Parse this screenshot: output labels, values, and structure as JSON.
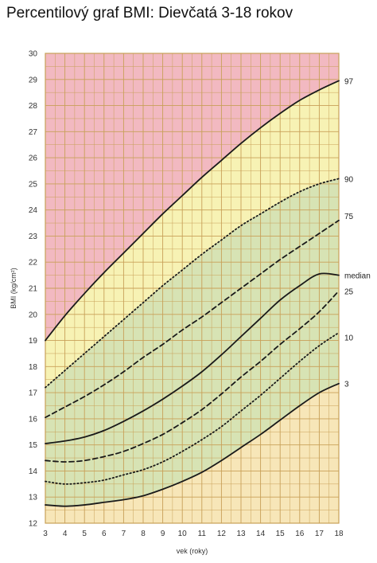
{
  "title": "Percentilový graf BMI: Dievčatá 3-18 rokov",
  "chart_data": {
    "type": "line",
    "title": "Percentilový graf BMI: Dievčatá 3-18 rokov",
    "xlabel": "vek (roky)",
    "ylabel": "BMI (kg/cm²)",
    "xlim": [
      3,
      18
    ],
    "ylim": [
      12,
      30
    ],
    "x_ticks": [
      3,
      4,
      5,
      6,
      7,
      8,
      9,
      10,
      11,
      12,
      13,
      14,
      15,
      16,
      17,
      18
    ],
    "y_ticks": [
      12,
      13,
      14,
      15,
      16,
      17,
      18,
      19,
      20,
      21,
      22,
      23,
      24,
      25,
      26,
      27,
      28,
      29,
      30
    ],
    "grid": true,
    "x": [
      3,
      4,
      5,
      6,
      7,
      8,
      9,
      10,
      11,
      12,
      13,
      14,
      15,
      16,
      17,
      18
    ],
    "series": [
      {
        "name": "3",
        "style": "solid",
        "values": [
          12.7,
          12.65,
          12.7,
          12.8,
          12.9,
          13.05,
          13.3,
          13.6,
          13.95,
          14.4,
          14.9,
          15.4,
          15.95,
          16.5,
          17.0,
          17.35
        ]
      },
      {
        "name": "10",
        "style": "dotted",
        "values": [
          13.6,
          13.5,
          13.55,
          13.65,
          13.85,
          14.05,
          14.35,
          14.75,
          15.2,
          15.7,
          16.3,
          16.9,
          17.55,
          18.2,
          18.8,
          19.3
        ]
      },
      {
        "name": "25",
        "style": "dashed",
        "values": [
          14.4,
          14.35,
          14.4,
          14.55,
          14.75,
          15.05,
          15.4,
          15.85,
          16.35,
          16.95,
          17.6,
          18.2,
          18.85,
          19.45,
          20.1,
          20.9
        ]
      },
      {
        "name": "median",
        "style": "solid",
        "values": [
          15.05,
          15.15,
          15.3,
          15.55,
          15.9,
          16.3,
          16.75,
          17.25,
          17.8,
          18.45,
          19.15,
          19.85,
          20.55,
          21.1,
          21.55,
          21.5
        ]
      },
      {
        "name": "75",
        "style": "dashed",
        "values": [
          16.05,
          16.45,
          16.85,
          17.3,
          17.8,
          18.35,
          18.85,
          19.4,
          19.9,
          20.45,
          21.0,
          21.55,
          22.1,
          22.6,
          23.1,
          23.6
        ]
      },
      {
        "name": "90",
        "style": "dotted",
        "values": [
          17.2,
          17.85,
          18.5,
          19.15,
          19.8,
          20.45,
          21.1,
          21.7,
          22.3,
          22.85,
          23.4,
          23.85,
          24.3,
          24.7,
          25.0,
          25.2
        ]
      },
      {
        "name": "97",
        "style": "solid",
        "values": [
          19.0,
          19.95,
          20.8,
          21.6,
          22.35,
          23.1,
          23.85,
          24.55,
          25.25,
          25.9,
          26.55,
          27.15,
          27.7,
          28.2,
          28.6,
          28.95
        ]
      }
    ],
    "zone_colors": {
      "above_97": "#f2b9c1",
      "between_90_97": "#f7f2b4",
      "between_3_90": "#d7e3b4",
      "below_3": "#f7e6b8"
    },
    "grid_color": "#c8a058",
    "line_color": "#1a1a1a"
  }
}
